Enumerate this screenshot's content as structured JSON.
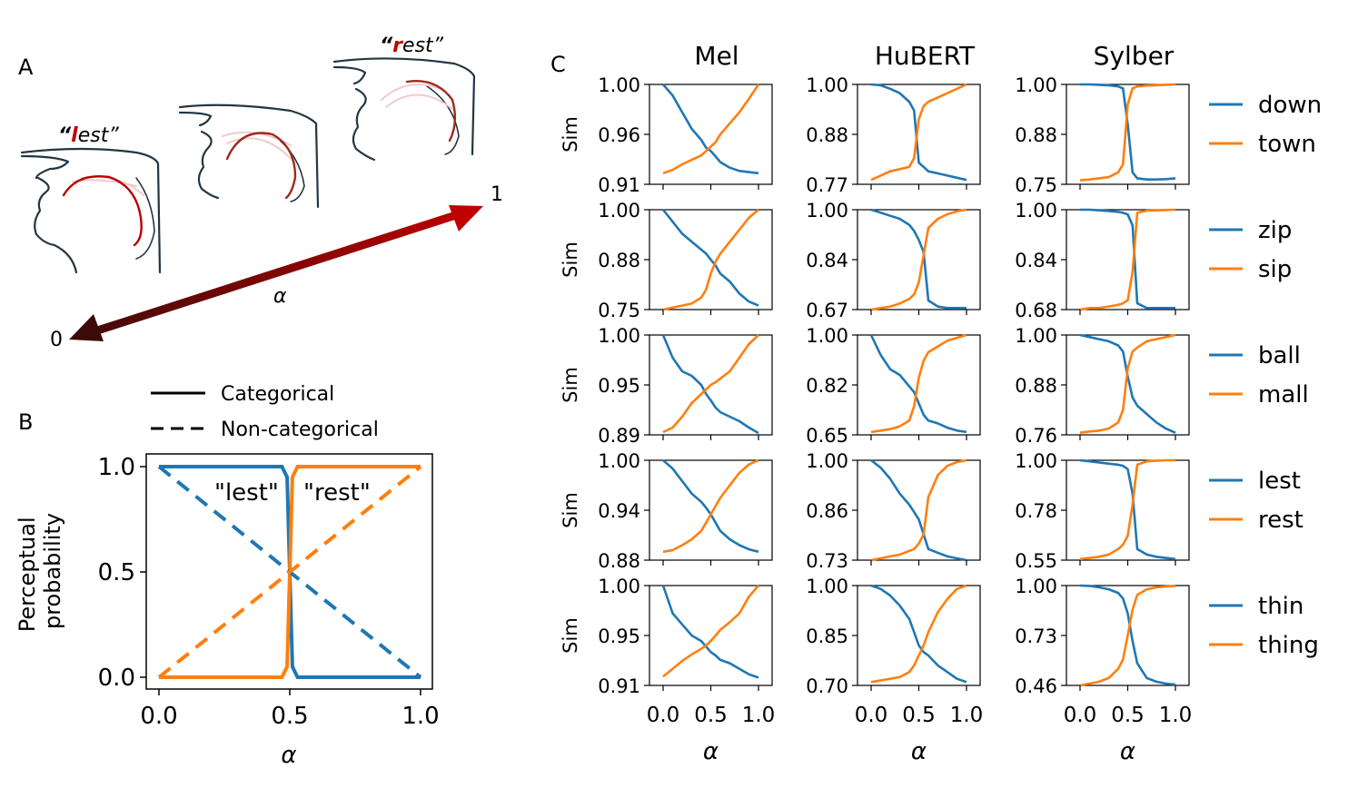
{
  "colors": {
    "blue": "#1f77b4",
    "orange": "#ff7f0e",
    "arrow_dark": "#3d0a0a",
    "arrow_bright": "#c00000",
    "outline": "#233642"
  },
  "panel_a": {
    "label": "A",
    "word_left_open": "“",
    "word_left_key": "l",
    "word_left_rest": "est”",
    "word_right_open": "“",
    "word_right_key": "r",
    "word_right_rest": "est”",
    "arrow_start_label": "0",
    "arrow_end_label": "1",
    "arrow_axis_label": "α"
  },
  "panel_b": {
    "label": "B",
    "legend": {
      "solid": "Categorical",
      "dashed": "Non-categorical"
    },
    "annot_blue": "\"lest\"",
    "annot_orange": "\"rest\""
  },
  "panel_c": {
    "label": "C",
    "columns": [
      "Mel",
      "HuBERT",
      "Sylber"
    ],
    "ylabel": "Sim",
    "xlabel": "α"
  },
  "chart_data": [
    {
      "type": "line",
      "panel": "B",
      "xlabel": "α",
      "ylabel": "Perceptual\nprobability",
      "xlim": [
        0,
        1
      ],
      "ylim": [
        0,
        1
      ],
      "xticks": [
        "0.0",
        "0.5",
        "1.0"
      ],
      "yticks": [
        "0.0",
        "0.5",
        "1.0"
      ],
      "series": [
        {
          "name": "lest categorical",
          "style": "solid",
          "color": "blue",
          "x": [
            0,
            0.47,
            0.49,
            0.5,
            0.51,
            0.53,
            1
          ],
          "values": [
            1,
            1,
            0.95,
            0.5,
            0.05,
            0,
            0
          ]
        },
        {
          "name": "rest categorical",
          "style": "solid",
          "color": "orange",
          "x": [
            0,
            0.47,
            0.49,
            0.5,
            0.51,
            0.53,
            1
          ],
          "values": [
            0,
            0,
            0.05,
            0.5,
            0.95,
            1,
            1
          ]
        },
        {
          "name": "lest non-categorical",
          "style": "dashed",
          "color": "blue",
          "x": [
            0,
            1
          ],
          "values": [
            1,
            0
          ]
        },
        {
          "name": "rest non-categorical",
          "style": "dashed",
          "color": "orange",
          "x": [
            0,
            1
          ],
          "values": [
            0,
            1
          ]
        }
      ]
    },
    {
      "type": "line",
      "panel": "C",
      "x": [
        0,
        0.1,
        0.2,
        0.3,
        0.4,
        0.45,
        0.5,
        0.55,
        0.6,
        0.7,
        0.8,
        0.9,
        1.0
      ],
      "xticks": [
        "0.0",
        "0.5",
        "1.0"
      ],
      "rows": [
        {
          "legend": [
            "down",
            "town"
          ],
          "cells": [
            {
              "yticks": [
                "1.00",
                "0.96",
                "0.91"
              ],
              "ylim": [
                0.91,
                1.0
              ],
              "blue": [
                1.0,
                0.99,
                0.975,
                0.96,
                0.95,
                0.943,
                0.94,
                0.935,
                0.93,
                0.925,
                0.922,
                0.921,
                0.92
              ],
              "orange": [
                0.92,
                0.923,
                0.928,
                0.932,
                0.936,
                0.94,
                0.944,
                0.948,
                0.955,
                0.965,
                0.975,
                0.987,
                1.0
              ]
            },
            {
              "yticks": [
                "1.00",
                "0.88",
                "0.77"
              ],
              "ylim": [
                0.77,
                1.0
              ],
              "blue": [
                1.0,
                0.998,
                0.99,
                0.98,
                0.96,
                0.94,
                0.82,
                0.81,
                0.8,
                0.795,
                0.79,
                0.785,
                0.78
              ],
              "orange": [
                0.78,
                0.79,
                0.8,
                0.805,
                0.81,
                0.83,
                0.92,
                0.95,
                0.96,
                0.97,
                0.98,
                0.99,
                1.0
              ]
            },
            {
              "yticks": [
                "1.00",
                "0.88",
                "0.75"
              ],
              "ylim": [
                0.75,
                1.0
              ],
              "blue": [
                1.0,
                1.0,
                0.999,
                0.998,
                0.995,
                0.99,
                0.9,
                0.78,
                0.765,
                0.762,
                0.762,
                0.763,
                0.765
              ],
              "orange": [
                0.76,
                0.762,
                0.765,
                0.768,
                0.78,
                0.8,
                0.95,
                0.99,
                0.995,
                0.997,
                0.998,
                0.999,
                1.0
              ]
            }
          ]
        },
        {
          "legend": [
            "zip",
            "sip"
          ],
          "cells": [
            {
              "yticks": [
                "1.00",
                "0.88",
                "0.75"
              ],
              "ylim": [
                0.75,
                1.0
              ],
              "blue": [
                1.0,
                0.97,
                0.94,
                0.92,
                0.9,
                0.89,
                0.875,
                0.86,
                0.84,
                0.82,
                0.79,
                0.77,
                0.76
              ],
              "orange": [
                0.75,
                0.755,
                0.76,
                0.765,
                0.78,
                0.8,
                0.84,
                0.87,
                0.89,
                0.92,
                0.95,
                0.98,
                1.0
              ]
            },
            {
              "yticks": [
                "1.00",
                "0.84",
                "0.67"
              ],
              "ylim": [
                0.67,
                1.0
              ],
              "blue": [
                1.0,
                0.99,
                0.98,
                0.97,
                0.95,
                0.93,
                0.9,
                0.86,
                0.7,
                0.68,
                0.675,
                0.675,
                0.675
              ],
              "orange": [
                0.67,
                0.675,
                0.68,
                0.69,
                0.705,
                0.72,
                0.76,
                0.85,
                0.94,
                0.97,
                0.985,
                0.995,
                1.0
              ]
            },
            {
              "yticks": [
                "1.00",
                "0.84",
                "0.68"
              ],
              "ylim": [
                0.68,
                1.0
              ],
              "blue": [
                1.0,
                1.0,
                0.998,
                0.996,
                0.993,
                0.99,
                0.985,
                0.95,
                0.7,
                0.685,
                0.685,
                0.685,
                0.685
              ],
              "orange": [
                0.68,
                0.685,
                0.685,
                0.69,
                0.695,
                0.7,
                0.71,
                0.8,
                0.99,
                0.997,
                0.998,
                0.999,
                1.0
              ]
            }
          ]
        },
        {
          "legend": [
            "ball",
            "mall"
          ],
          "cells": [
            {
              "yticks": [
                "1.00",
                "0.95",
                "0.89"
              ],
              "ylim": [
                0.89,
                1.0
              ],
              "blue": [
                1.0,
                0.975,
                0.96,
                0.955,
                0.945,
                0.935,
                0.928,
                0.92,
                0.915,
                0.91,
                0.905,
                0.898,
                0.892
              ],
              "orange": [
                0.893,
                0.898,
                0.91,
                0.925,
                0.935,
                0.94,
                0.945,
                0.948,
                0.952,
                0.96,
                0.975,
                0.99,
                1.0
              ]
            },
            {
              "yticks": [
                "1.00",
                "0.82",
                "0.65"
              ],
              "ylim": [
                0.65,
                1.0
              ],
              "blue": [
                1.0,
                0.93,
                0.88,
                0.86,
                0.82,
                0.8,
                0.76,
                0.72,
                0.7,
                0.69,
                0.675,
                0.665,
                0.66
              ],
              "orange": [
                0.66,
                0.665,
                0.67,
                0.68,
                0.7,
                0.75,
                0.85,
                0.91,
                0.94,
                0.96,
                0.98,
                0.99,
                1.0
              ]
            },
            {
              "yticks": [
                "1.00",
                "0.88",
                "0.76"
              ],
              "ylim": [
                0.76,
                1.0
              ],
              "blue": [
                1.0,
                0.995,
                0.99,
                0.985,
                0.975,
                0.96,
                0.9,
                0.85,
                0.83,
                0.81,
                0.79,
                0.775,
                0.765
              ],
              "orange": [
                0.765,
                0.768,
                0.77,
                0.775,
                0.79,
                0.82,
                0.92,
                0.96,
                0.97,
                0.985,
                0.99,
                0.995,
                1.0
              ]
            }
          ]
        },
        {
          "legend": [
            "lest",
            "rest"
          ],
          "cells": [
            {
              "yticks": [
                "1.00",
                "0.94",
                "0.88"
              ],
              "ylim": [
                0.88,
                1.0
              ],
              "blue": [
                1.0,
                0.99,
                0.975,
                0.96,
                0.95,
                0.943,
                0.935,
                0.925,
                0.915,
                0.905,
                0.898,
                0.893,
                0.89
              ],
              "orange": [
                0.89,
                0.892,
                0.898,
                0.905,
                0.915,
                0.925,
                0.935,
                0.945,
                0.955,
                0.97,
                0.985,
                0.995,
                1.0
              ]
            },
            {
              "yticks": [
                "1.00",
                "0.86",
                "0.73"
              ],
              "ylim": [
                0.73,
                1.0
              ],
              "blue": [
                1.0,
                0.98,
                0.95,
                0.91,
                0.88,
                0.86,
                0.84,
                0.8,
                0.76,
                0.75,
                0.74,
                0.735,
                0.73
              ],
              "orange": [
                0.73,
                0.735,
                0.74,
                0.745,
                0.755,
                0.76,
                0.775,
                0.8,
                0.9,
                0.96,
                0.985,
                0.995,
                1.0
              ]
            },
            {
              "yticks": [
                "1.00",
                "0.78",
                "0.55"
              ],
              "ylim": [
                0.55,
                1.0
              ],
              "blue": [
                1.0,
                0.995,
                0.99,
                0.985,
                0.98,
                0.975,
                0.96,
                0.85,
                0.6,
                0.575,
                0.565,
                0.56,
                0.555
              ],
              "orange": [
                0.555,
                0.56,
                0.565,
                0.575,
                0.6,
                0.62,
                0.66,
                0.8,
                0.98,
                0.995,
                0.998,
                1.0,
                1.0
              ]
            }
          ]
        },
        {
          "legend": [
            "thin",
            "thing"
          ],
          "cells": [
            {
              "yticks": [
                "1.00",
                "0.95",
                "0.91"
              ],
              "ylim": [
                0.91,
                1.0
              ],
              "blue": [
                1.0,
                0.975,
                0.965,
                0.955,
                0.95,
                0.945,
                0.94,
                0.937,
                0.933,
                0.93,
                0.925,
                0.92,
                0.917
              ],
              "orange": [
                0.918,
                0.925,
                0.932,
                0.938,
                0.943,
                0.946,
                0.95,
                0.955,
                0.96,
                0.967,
                0.975,
                0.99,
                1.0
              ]
            },
            {
              "yticks": [
                "1.00",
                "0.85",
                "0.70"
              ],
              "ylim": [
                0.7,
                1.0
              ],
              "blue": [
                1.0,
                0.99,
                0.97,
                0.94,
                0.9,
                0.86,
                0.82,
                0.8,
                0.79,
                0.76,
                0.74,
                0.72,
                0.71
              ],
              "orange": [
                0.71,
                0.715,
                0.72,
                0.725,
                0.74,
                0.76,
                0.79,
                0.82,
                0.86,
                0.92,
                0.96,
                0.99,
                1.0
              ]
            },
            {
              "yticks": [
                "1.00",
                "0.73",
                "0.46"
              ],
              "ylim": [
                0.46,
                1.0
              ],
              "blue": [
                1.0,
                0.998,
                0.99,
                0.98,
                0.96,
                0.93,
                0.85,
                0.7,
                0.58,
                0.5,
                0.48,
                0.47,
                0.465
              ],
              "orange": [
                0.46,
                0.47,
                0.48,
                0.5,
                0.55,
                0.6,
                0.73,
                0.87,
                0.95,
                0.98,
                0.99,
                0.995,
                0.998
              ]
            }
          ]
        }
      ]
    }
  ]
}
